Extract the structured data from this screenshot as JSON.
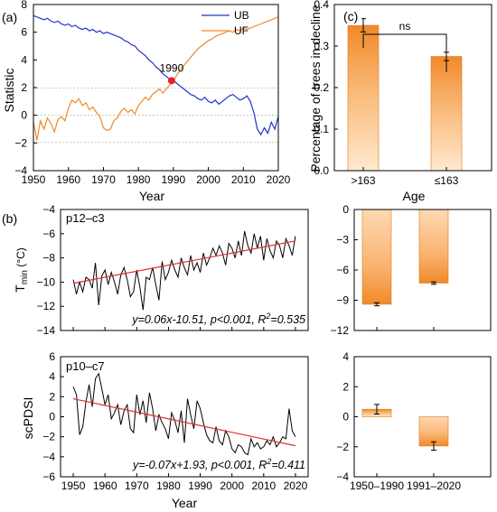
{
  "chart_data": [
    {
      "id": "a",
      "panel_label": "(a)",
      "type": "line",
      "xlabel": "Year",
      "ylabel": "Statistic",
      "xlim": [
        1950,
        2020
      ],
      "ylim": [
        -4,
        8
      ],
      "xticks": [
        1950,
        1960,
        1970,
        1980,
        1990,
        2000,
        2010,
        2020
      ],
      "yticks": [
        -4,
        -2,
        0,
        2,
        4,
        6,
        8
      ],
      "reference_lines": [
        1.96,
        0,
        -1.96
      ],
      "annotation": {
        "label": "1990",
        "x": 1989.5,
        "y": 2.5,
        "color": "#e8202a"
      },
      "legend_position": "top-right",
      "series": [
        {
          "name": "UB",
          "color": "#2233cc",
          "x": [
            1950,
            1951,
            1952,
            1953,
            1954,
            1955,
            1956,
            1957,
            1958,
            1959,
            1960,
            1961,
            1962,
            1963,
            1964,
            1965,
            1966,
            1967,
            1968,
            1969,
            1970,
            1971,
            1972,
            1973,
            1974,
            1975,
            1976,
            1977,
            1978,
            1979,
            1980,
            1981,
            1982,
            1983,
            1984,
            1985,
            1986,
            1987,
            1988,
            1989,
            1990,
            1991,
            1992,
            1993,
            1994,
            1995,
            1996,
            1997,
            1998,
            1999,
            2000,
            2001,
            2002,
            2003,
            2004,
            2005,
            2006,
            2007,
            2008,
            2009,
            2010,
            2011,
            2012,
            2013,
            2014,
            2015,
            2016,
            2017,
            2018,
            2019,
            2020
          ],
          "values": [
            7.2,
            7.1,
            7.0,
            6.9,
            7.0,
            6.8,
            6.7,
            6.8,
            6.6,
            6.5,
            6.6,
            6.4,
            6.5,
            6.3,
            6.2,
            6.3,
            6.1,
            6.2,
            6.0,
            6.1,
            5.9,
            6.0,
            5.9,
            5.8,
            5.7,
            5.6,
            5.4,
            5.3,
            5.1,
            5.0,
            4.7,
            4.5,
            4.3,
            4.0,
            3.8,
            3.5,
            3.3,
            3.0,
            2.8,
            2.6,
            2.5,
            2.3,
            2.1,
            1.9,
            1.7,
            1.5,
            1.4,
            1.2,
            1.1,
            1.3,
            1.0,
            0.9,
            1.1,
            0.8,
            1.0,
            1.2,
            1.4,
            1.5,
            1.3,
            1.1,
            1.2,
            1.4,
            1.0,
            0.2,
            -1.0,
            -1.4,
            -0.9,
            -1.3,
            -0.5,
            -1.0,
            -0.1
          ]
        },
        {
          "name": "UF",
          "color": "#f08a24",
          "x": [
            1950,
            1951,
            1952,
            1953,
            1954,
            1955,
            1956,
            1957,
            1958,
            1959,
            1960,
            1961,
            1962,
            1963,
            1964,
            1965,
            1966,
            1967,
            1968,
            1969,
            1970,
            1971,
            1972,
            1973,
            1974,
            1975,
            1976,
            1977,
            1978,
            1979,
            1980,
            1981,
            1982,
            1983,
            1984,
            1985,
            1986,
            1987,
            1988,
            1989,
            1990,
            1991,
            1992,
            1993,
            1994,
            1995,
            1996,
            1997,
            1998,
            1999,
            2000,
            2001,
            2002,
            2003,
            2004,
            2005,
            2006,
            2007,
            2008,
            2009,
            2010,
            2011,
            2012,
            2013,
            2014,
            2015,
            2016,
            2017,
            2018,
            2019,
            2020
          ],
          "values": [
            -0.5,
            -1.8,
            -0.4,
            -1.0,
            -0.2,
            -0.6,
            -1.2,
            -0.3,
            -0.1,
            -0.4,
            0.5,
            1.1,
            0.9,
            1.2,
            0.7,
            0.9,
            0.4,
            0.6,
            0.2,
            -0.1,
            -0.9,
            -1.1,
            -1.0,
            -0.4,
            -0.2,
            0.3,
            0.5,
            0.2,
            0.4,
            0.1,
            0.7,
            1.0,
            1.3,
            1.1,
            1.5,
            1.7,
            1.9,
            1.6,
            1.9,
            2.2,
            2.5,
            2.9,
            3.3,
            3.6,
            3.9,
            4.2,
            4.5,
            4.8,
            5.0,
            5.2,
            5.4,
            5.5,
            5.7,
            5.8,
            5.9,
            6.0,
            6.1,
            6.0,
            6.2,
            6.1,
            6.3,
            6.2,
            6.3,
            6.4,
            6.5,
            6.6,
            6.7,
            6.8,
            6.9,
            7.0,
            7.1
          ]
        }
      ]
    },
    {
      "id": "c",
      "panel_label": "(c)",
      "type": "bar",
      "ylabel": "Percentage of trees in decline",
      "xlabel": "Age",
      "categories": [
        ">163",
        "≤163"
      ],
      "values": [
        0.35,
        0.275
      ],
      "errors": [
        0.016,
        0.01
      ],
      "ylim": [
        0,
        0.4
      ],
      "yticks": [
        0.0,
        0.1,
        0.2,
        0.3,
        0.4
      ],
      "ytick_labels": [
        "0.0",
        "0.1",
        "0.2",
        "0.3",
        "0.4"
      ],
      "significance": "ns"
    },
    {
      "id": "b_top",
      "panel_label": "(b)",
      "type": "line",
      "subtitle": "p12–c3",
      "ylabel": "Tmin (°C)",
      "ylabel_main": "T",
      "ylabel_sub": "min",
      "ylabel_unit": " (°C)",
      "xlim": [
        1946,
        2024
      ],
      "ylim": [
        -14,
        -4
      ],
      "yticks": [
        -14,
        -12,
        -10,
        -8,
        -6,
        -4
      ],
      "trend": {
        "slope": 0.06,
        "intercept_at_1950": -10.1,
        "end_value_2020": -6.6,
        "color": "#e03030"
      },
      "equation": "y=0.06x-10.51, p<0.001, R",
      "equation_sup": "2",
      "equation_tail": "=0.535",
      "series": [
        {
          "color": "#000000",
          "x": [
            1950,
            1951,
            1952,
            1953,
            1954,
            1955,
            1956,
            1957,
            1958,
            1959,
            1960,
            1961,
            1962,
            1963,
            1964,
            1965,
            1966,
            1967,
            1968,
            1969,
            1970,
            1971,
            1972,
            1973,
            1974,
            1975,
            1976,
            1977,
            1978,
            1979,
            1980,
            1981,
            1982,
            1983,
            1984,
            1985,
            1986,
            1987,
            1988,
            1989,
            1990,
            1991,
            1992,
            1993,
            1994,
            1995,
            1996,
            1997,
            1998,
            1999,
            2000,
            2001,
            2002,
            2003,
            2004,
            2005,
            2006,
            2007,
            2008,
            2009,
            2010,
            2011,
            2012,
            2013,
            2014,
            2015,
            2016,
            2017,
            2018,
            2019,
            2020
          ],
          "values": [
            -9.8,
            -11.0,
            -10.0,
            -10.8,
            -9.6,
            -9.8,
            -10.5,
            -8.4,
            -11.9,
            -9.5,
            -9.0,
            -10.2,
            -9.2,
            -10.0,
            -11.0,
            -9.4,
            -8.8,
            -9.8,
            -11.2,
            -10.8,
            -9.0,
            -10.4,
            -12.3,
            -9.6,
            -9.8,
            -8.8,
            -10.2,
            -11.5,
            -8.3,
            -9.8,
            -9.2,
            -8.2,
            -9.0,
            -9.6,
            -8.0,
            -8.8,
            -9.4,
            -7.8,
            -9.0,
            -8.4,
            -9.2,
            -7.6,
            -8.6,
            -8.0,
            -7.2,
            -7.8,
            -7.0,
            -7.6,
            -8.6,
            -6.8,
            -7.2,
            -8.0,
            -6.6,
            -7.8,
            -5.8,
            -7.0,
            -7.6,
            -6.0,
            -7.2,
            -6.2,
            -8.2,
            -6.4,
            -7.4,
            -8.0,
            -6.6,
            -7.0,
            -8.0,
            -6.4,
            -7.0,
            -7.8,
            -6.2
          ]
        }
      ]
    },
    {
      "id": "b_bottom",
      "type": "line",
      "subtitle": "p10–c7",
      "ylabel": "scPDSI",
      "xlabel": "Year",
      "xlim": [
        1946,
        2024
      ],
      "ylim": [
        -6,
        6
      ],
      "xticks": [
        1950,
        1960,
        1970,
        1980,
        1990,
        2000,
        2010,
        2020
      ],
      "yticks": [
        -6,
        -4,
        -2,
        0,
        2,
        4,
        6
      ],
      "trend": {
        "slope": -0.07,
        "intercept_at_1950": 1.8,
        "end_value_2020": -2.9,
        "color": "#e03030"
      },
      "equation": "y=-0.07x+1.93, p<0.001, R",
      "equation_sup": "2",
      "equation_tail": "=0.411",
      "series": [
        {
          "color": "#000000",
          "x": [
            1950,
            1951,
            1952,
            1953,
            1954,
            1955,
            1956,
            1957,
            1958,
            1959,
            1960,
            1961,
            1962,
            1963,
            1964,
            1965,
            1966,
            1967,
            1968,
            1969,
            1970,
            1971,
            1972,
            1973,
            1974,
            1975,
            1976,
            1977,
            1978,
            1979,
            1980,
            1981,
            1982,
            1983,
            1984,
            1985,
            1986,
            1987,
            1988,
            1989,
            1990,
            1991,
            1992,
            1993,
            1994,
            1995,
            1996,
            1997,
            1998,
            1999,
            2000,
            2001,
            2002,
            2003,
            2004,
            2005,
            2006,
            2007,
            2008,
            2009,
            2010,
            2011,
            2012,
            2013,
            2014,
            2015,
            2016,
            2017,
            2018,
            2019,
            2020
          ],
          "values": [
            3.0,
            2.2,
            -1.8,
            -1.0,
            1.5,
            3.2,
            1.0,
            3.8,
            4.3,
            2.8,
            1.2,
            2.2,
            -0.2,
            0.4,
            1.2,
            -0.8,
            0.6,
            1.2,
            -1.2,
            -1.6,
            2.2,
            0.2,
            1.6,
            -0.6,
            2.4,
            0.8,
            -1.4,
            0.2,
            -0.6,
            -1.2,
            -2.2,
            0.4,
            -0.4,
            -1.6,
            0.6,
            -2.6,
            1.8,
            0.2,
            -1.2,
            1.6,
            0.8,
            -0.6,
            -1.8,
            -2.4,
            -2.6,
            -1.0,
            -2.4,
            -2.8,
            -1.4,
            -2.0,
            -3.2,
            -3.6,
            -2.8,
            -3.0,
            -3.6,
            -3.8,
            -2.2,
            -3.0,
            -2.6,
            -3.2,
            -3.0,
            -2.4,
            -2.8,
            -2.0,
            -3.0,
            -2.6,
            -2.0,
            -2.2,
            0.8,
            -1.4,
            -2.0
          ]
        }
      ]
    },
    {
      "id": "b_top_bar",
      "type": "bar",
      "ylim": [
        -12,
        0
      ],
      "yticks": [
        -12,
        -9,
        -6,
        -3,
        0
      ],
      "categories": [
        "1950–1990",
        "1991–2020"
      ],
      "values": [
        -9.4,
        -7.3
      ],
      "errors": [
        0.15,
        0.12
      ]
    },
    {
      "id": "b_bottom_bar",
      "type": "bar",
      "ylim": [
        -4,
        4
      ],
      "yticks": [
        -4,
        -2,
        0,
        2,
        4
      ],
      "categories": [
        "1950–1990",
        "1991–2020"
      ],
      "values": [
        0.5,
        -1.95
      ],
      "errors": [
        0.32,
        0.28
      ]
    }
  ]
}
